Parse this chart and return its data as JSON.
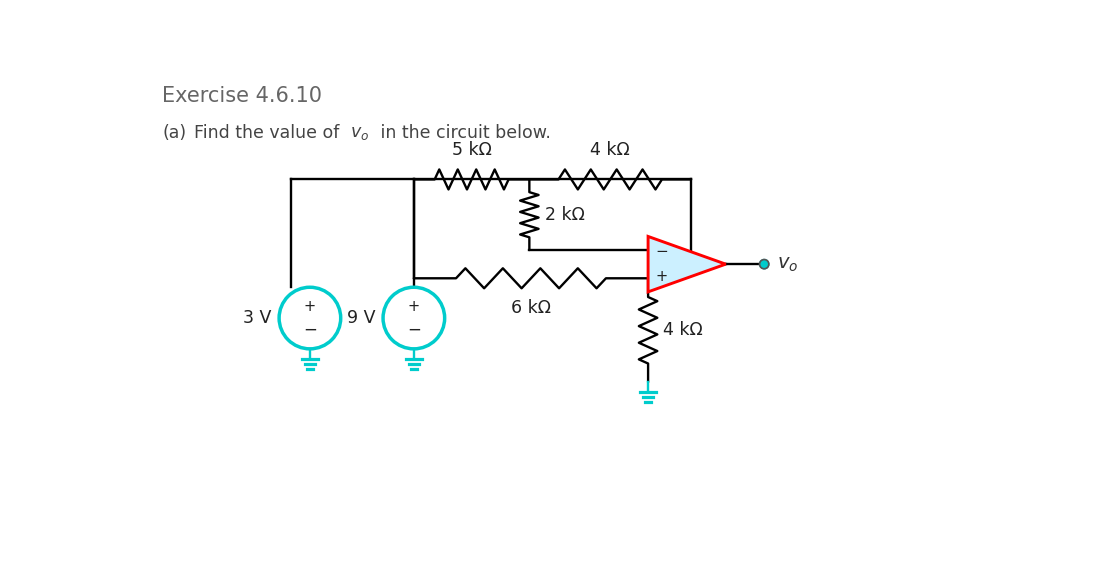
{
  "title": "Exercise 4.6.10",
  "bg_color": "#ffffff",
  "wire_color": "#000000",
  "resistor_color": "#000000",
  "opamp_color": "#ff0000",
  "opamp_fill": "#ccf0ff",
  "source_color": "#00cccc",
  "ground_color": "#00cccc",
  "resistor_labels": [
    "5 kΩ",
    "4 kΩ",
    "2 kΩ",
    "6 kΩ",
    "4 kΩ"
  ],
  "source_labels": [
    "3 V",
    "9 V"
  ],
  "title_fontsize": 15,
  "label_fontsize": 12.5
}
